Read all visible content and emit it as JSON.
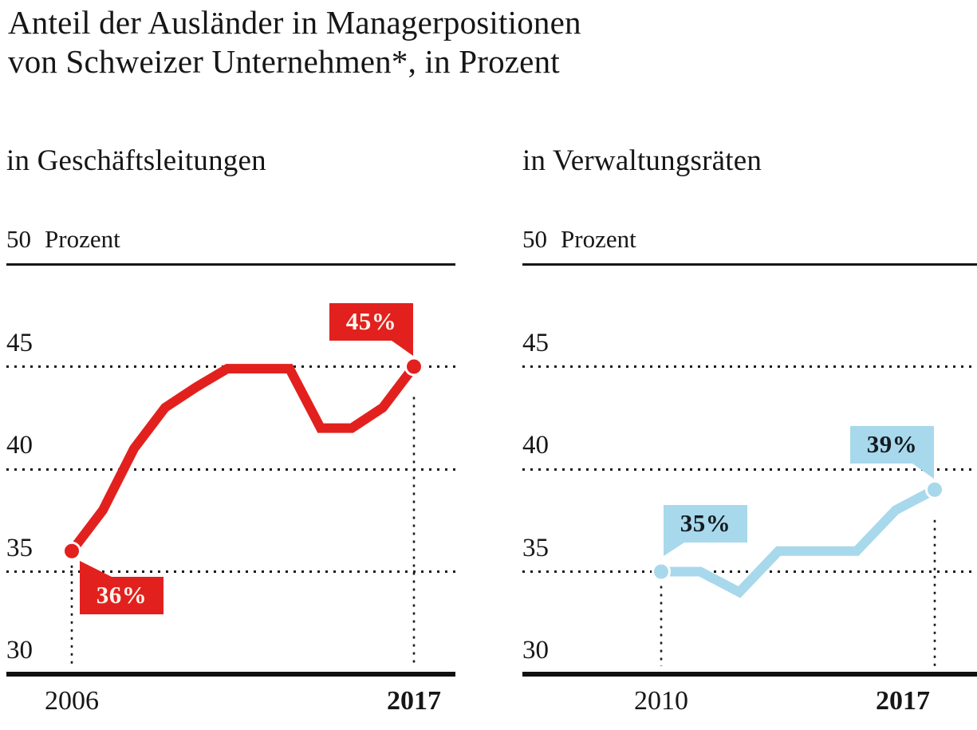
{
  "page_title": {
    "line1": "Anteil der Ausländer in Managerpositionen",
    "line2": "von Schweizer Unternehmen*, in Prozent"
  },
  "colors": {
    "red": "#e2211e",
    "light_blue": "#a8d8eb",
    "ink": "#161616",
    "text_on_red": "#faf4ec",
    "text_on_blue": "#131b20",
    "background": "#ffffff"
  },
  "chart_data": [
    {
      "type": "line",
      "title": "in Geschäftsleitungen",
      "ylabel_header": {
        "value": "50",
        "unit": "Prozent"
      },
      "x": [
        2006,
        2007,
        2008,
        2009,
        2010,
        2011,
        2012,
        2013,
        2014,
        2015,
        2016,
        2017
      ],
      "values": [
        36,
        38,
        41,
        43,
        44,
        44.9,
        44.9,
        44.9,
        42,
        42,
        43,
        45
      ],
      "ylim": [
        30,
        50
      ],
      "yticks": [
        {
          "value": 45,
          "label": "45"
        },
        {
          "value": 40,
          "label": "40"
        },
        {
          "value": 35,
          "label": "35"
        },
        {
          "value": 30,
          "label": "30"
        }
      ],
      "xticks": [
        {
          "year": 2006,
          "label": "2006",
          "bold": false
        },
        {
          "year": 2017,
          "label": "2017",
          "bold": true
        }
      ],
      "line_color": "#e2211e",
      "grid": "dotted-horizontal",
      "legend": "none",
      "annotations": [
        {
          "year": 2006,
          "value": 36,
          "label": "36%",
          "pointer": "top-left",
          "box_color": "#e2211e",
          "text_color": "#faf4ec"
        },
        {
          "year": 2017,
          "value": 45,
          "label": "45%",
          "pointer": "bottom-right",
          "box_color": "#e2211e",
          "text_color": "#faf4ec"
        }
      ]
    },
    {
      "type": "line",
      "title": "in Verwaltungsräten",
      "ylabel_header": {
        "value": "50",
        "unit": "Prozent"
      },
      "x": [
        2010,
        2011,
        2012,
        2013,
        2014,
        2015,
        2016,
        2017
      ],
      "values": [
        35,
        35,
        34,
        36,
        36,
        36,
        38,
        39
      ],
      "ylim": [
        30,
        50
      ],
      "yticks": [
        {
          "value": 45,
          "label": "45"
        },
        {
          "value": 40,
          "label": "40"
        },
        {
          "value": 35,
          "label": "35"
        },
        {
          "value": 30,
          "label": "30"
        }
      ],
      "xticks": [
        {
          "year": 2010,
          "label": "2010",
          "bold": false
        },
        {
          "year": 2017,
          "label": "2017",
          "bold": true
        }
      ],
      "line_color": "#a8d8eb",
      "grid": "dotted-horizontal",
      "legend": "none",
      "annotations": [
        {
          "year": 2010,
          "value": 35,
          "label": "35%",
          "pointer": "bottom-left",
          "box_color": "#a8d8eb",
          "text_color": "#131b20"
        },
        {
          "year": 2017,
          "value": 39,
          "label": "39%",
          "pointer": "bottom-right",
          "box_color": "#a8d8eb",
          "text_color": "#131b20"
        }
      ]
    }
  ]
}
